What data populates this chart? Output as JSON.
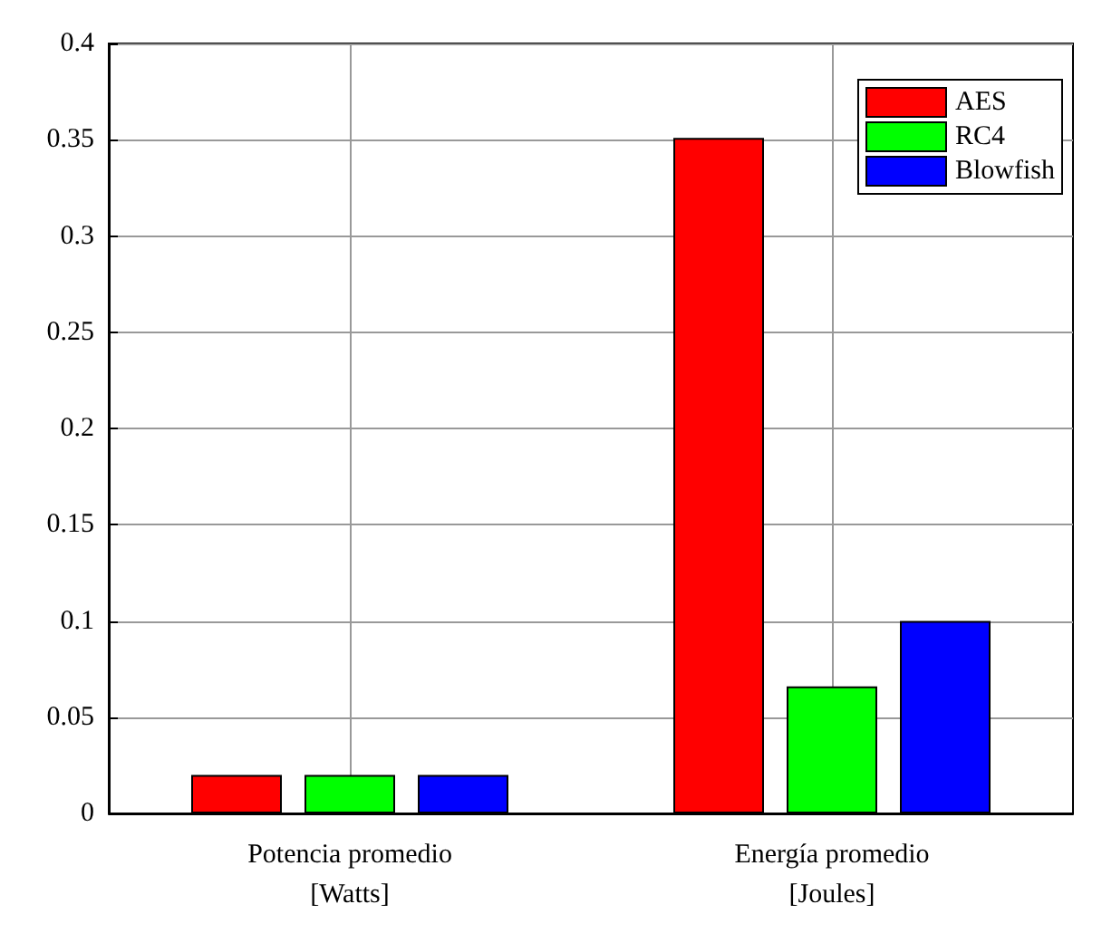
{
  "chart_data": {
    "type": "bar",
    "categories": [
      "Potencia promedio\n[Watts]",
      "Energía promedio\n[Joules]"
    ],
    "series": [
      {
        "name": "AES",
        "color": "#ff0000",
        "values": [
          0.02,
          0.351
        ]
      },
      {
        "name": "RC4",
        "color": "#00ff00",
        "values": [
          0.02,
          0.066
        ]
      },
      {
        "name": "Blowfish",
        "color": "#0000ff",
        "values": [
          0.02,
          0.1
        ]
      }
    ],
    "ylim": [
      0,
      0.4
    ],
    "yticks": [
      0,
      0.05,
      0.1,
      0.15,
      0.2,
      0.25,
      0.3,
      0.35,
      0.4
    ],
    "grid": true,
    "legend": "top right"
  }
}
